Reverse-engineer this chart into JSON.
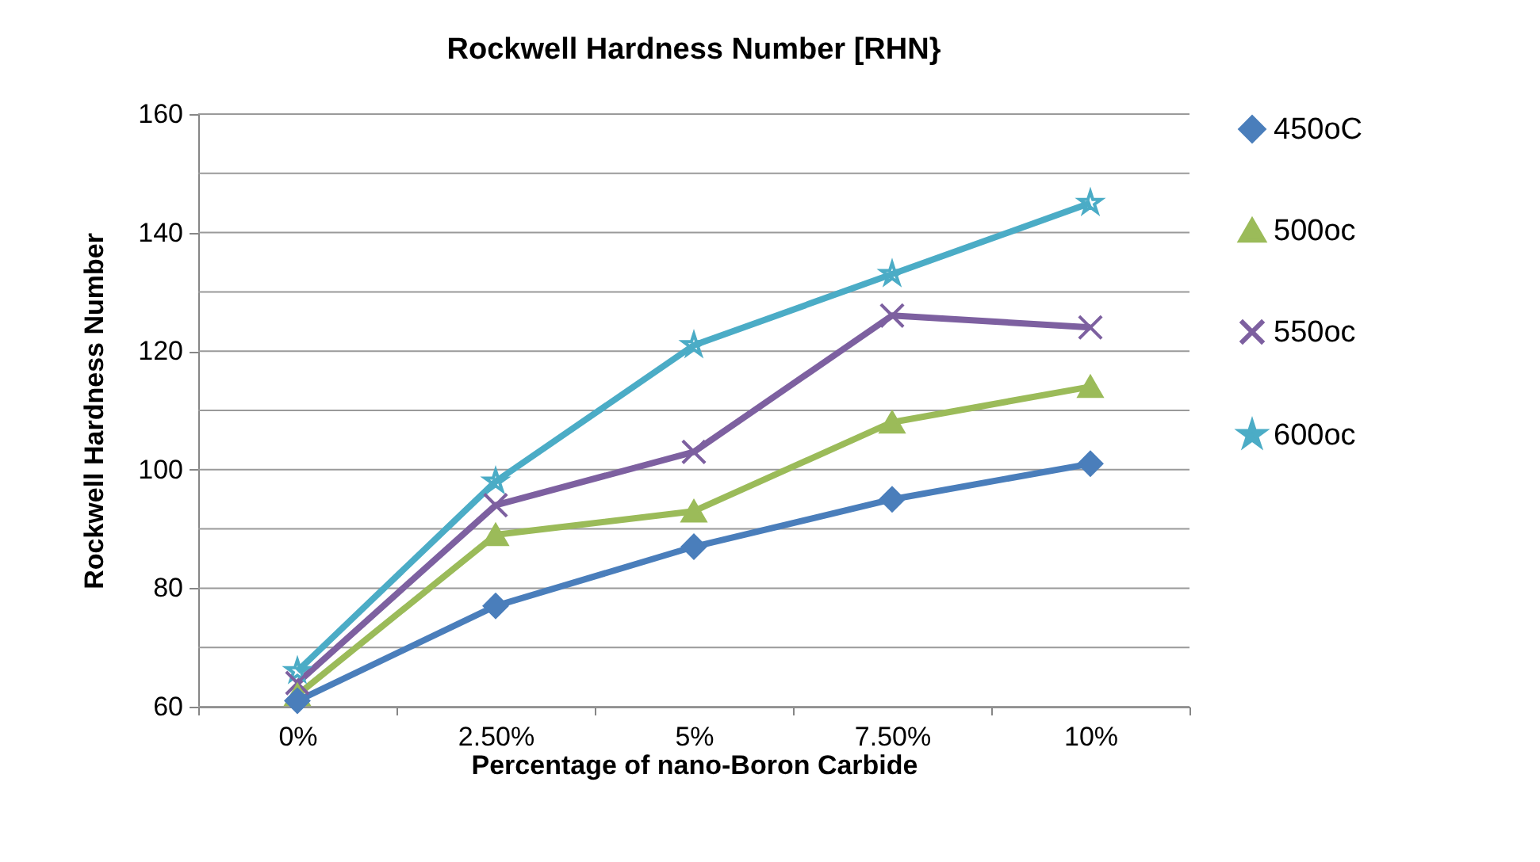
{
  "chart_data": {
    "type": "line",
    "title": "Rockwell Hardness Number [RHN}",
    "xlabel": "Percentage of  nano-Boron Carbide",
    "ylabel": "Rockwell Hardness Number",
    "categories": [
      "0%",
      "2.50%",
      "5%",
      "7.50%",
      "10%"
    ],
    "series": [
      {
        "name": "450oC",
        "color": "#4a7ebb",
        "marker": "diamond",
        "values": [
          61,
          77,
          87,
          95,
          101
        ]
      },
      {
        "name": "500oc",
        "color": "#9bbb59",
        "marker": "triangle",
        "values": [
          62,
          89,
          93,
          108,
          114
        ]
      },
      {
        "name": "550oc",
        "color": "#7d60a0",
        "marker": "cross",
        "values": [
          64,
          94,
          103,
          126,
          124
        ]
      },
      {
        "name": "600oc",
        "color": "#4bacc6",
        "marker": "star",
        "values": [
          66,
          98,
          121,
          133,
          145
        ]
      }
    ],
    "ylim": [
      60,
      160
    ],
    "yticks": [
      60,
      {
        "value": 70,
        "label": null
      },
      80,
      {
        "value": 90,
        "label": null
      },
      100,
      {
        "value": 110,
        "label": null
      },
      120,
      {
        "value": 130,
        "label": null
      },
      140,
      {
        "value": 150,
        "label": null
      },
      160
    ],
    "grid": "y",
    "legend": "right"
  }
}
